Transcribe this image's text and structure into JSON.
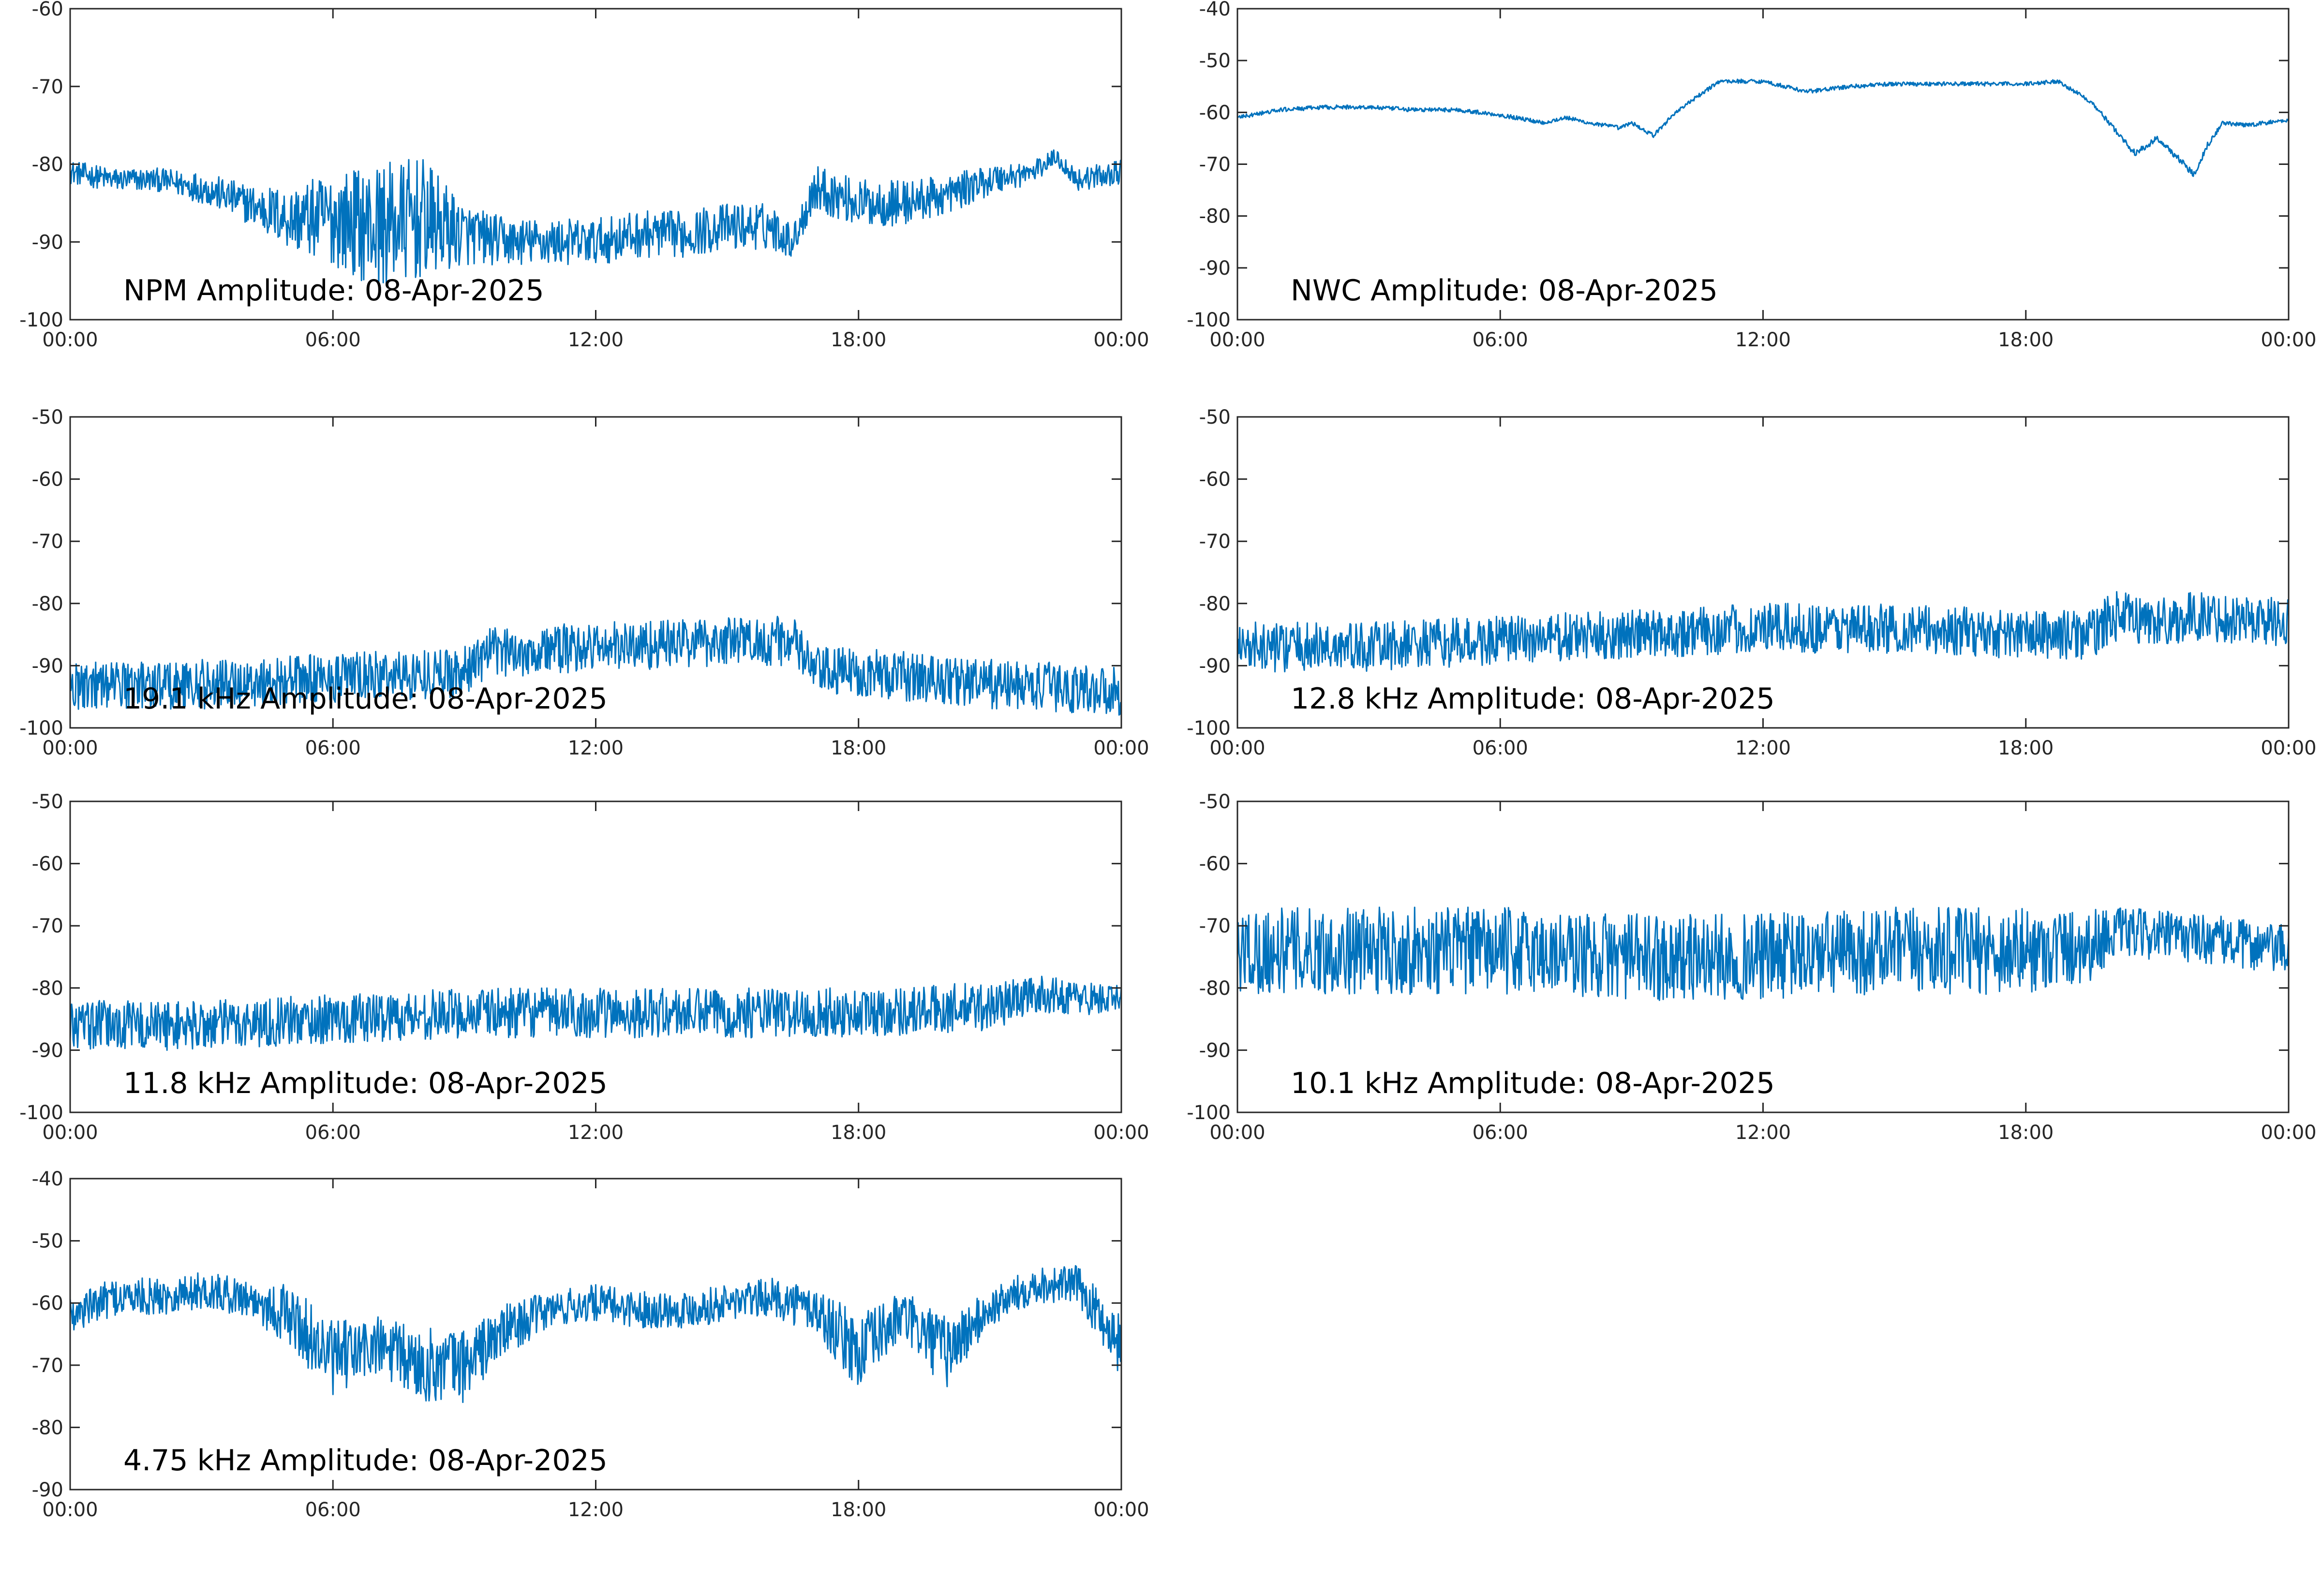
{
  "figure": {
    "line_color": "#0072BD",
    "axis_color": "#262626",
    "background": "#ffffff"
  },
  "chart_data": [
    {
      "id": "npm",
      "type": "line",
      "title": "NPM Amplitude: 08-Apr-2025",
      "xlabel": "",
      "ylabel": "",
      "xlim": [
        "00:00",
        "00:00"
      ],
      "x_ticks": [
        "00:00",
        "06:00",
        "12:00",
        "18:00",
        "00:00"
      ],
      "ylim": [
        -100,
        -60
      ],
      "y_ticks": [
        -100,
        -90,
        -80,
        -70,
        -60
      ],
      "grid": false,
      "series": [
        {
          "x": [
            "00:00",
            "01:00",
            "02:00",
            "03:00",
            "04:00",
            "05:00",
            "06:00",
            "07:00",
            "08:00",
            "09:00",
            "10:00",
            "11:00",
            "12:00",
            "13:00",
            "14:00",
            "15:00",
            "16:00",
            "16:30",
            "17:00",
            "18:00",
            "19:00",
            "20:00",
            "21:00",
            "22:00",
            "22:30",
            "23:00",
            "24:00"
          ],
          "center": [
            -81,
            -82,
            -82,
            -83,
            -85,
            -87,
            -87,
            -88,
            -87,
            -89,
            -90,
            -90,
            -90,
            -89,
            -89,
            -88,
            -88,
            -90,
            -83,
            -85,
            -85,
            -84,
            -82,
            -81,
            -79,
            -82,
            -81
          ],
          "spread": [
            1.5,
            1.5,
            1.5,
            2,
            2.5,
            4,
            6,
            8,
            8,
            4,
            3,
            3,
            3,
            3,
            3,
            3,
            3,
            2,
            3,
            3,
            3,
            2.5,
            2,
            1.5,
            1,
            1.5,
            1.5
          ]
        }
      ]
    },
    {
      "id": "nwc",
      "type": "line",
      "title": "NWC Amplitude: 08-Apr-2025",
      "xlabel": "",
      "ylabel": "",
      "xlim": [
        "00:00",
        "00:00"
      ],
      "x_ticks": [
        "00:00",
        "06:00",
        "12:00",
        "18:00",
        "00:00"
      ],
      "ylim": [
        -100,
        -40
      ],
      "y_ticks": [
        -100,
        -90,
        -80,
        -70,
        -60,
        -50,
        -40
      ],
      "grid": false,
      "series": [
        {
          "x": [
            "00:00",
            "01:00",
            "02:00",
            "03:00",
            "04:00",
            "05:00",
            "06:00",
            "07:00",
            "07:30",
            "08:00",
            "08:45",
            "09:00",
            "09:30",
            "10:00",
            "11:00",
            "12:00",
            "13:00",
            "14:00",
            "15:00",
            "16:00",
            "17:00",
            "18:00",
            "18:45",
            "19:30",
            "20:30",
            "21:00",
            "21:30",
            "21:50",
            "22:10",
            "22:30",
            "23:00",
            "24:00"
          ],
          "center": [
            -61,
            -59.5,
            -59,
            -59,
            -59.5,
            -59.5,
            -60.5,
            -62,
            -61,
            -62,
            -63,
            -62,
            -64.5,
            -60,
            -54,
            -54,
            -56,
            -55,
            -54.5,
            -54.5,
            -54.5,
            -54.5,
            -54,
            -58,
            -68,
            -65,
            -69,
            -72,
            -66,
            -62,
            -62.5,
            -61.5
          ],
          "spread": [
            0.4,
            0.4,
            0.4,
            0.4,
            0.4,
            0.4,
            0.4,
            0.4,
            0.4,
            0.4,
            0.4,
            0.4,
            0.4,
            0.4,
            0.4,
            0.4,
            0.4,
            0.4,
            0.4,
            0.4,
            0.4,
            0.4,
            0.4,
            0.4,
            0.6,
            0.6,
            0.6,
            0.6,
            0.6,
            0.4,
            0.4,
            0.4
          ]
        }
      ]
    },
    {
      "id": "f19_1",
      "type": "line",
      "title": "19.1 kHz Amplitude: 08-Apr-2025",
      "xlabel": "",
      "ylabel": "",
      "xlim": [
        "00:00",
        "00:00"
      ],
      "x_ticks": [
        "00:00",
        "06:00",
        "12:00",
        "18:00",
        "00:00"
      ],
      "ylim": [
        -100,
        -50
      ],
      "y_ticks": [
        -100,
        -90,
        -80,
        -70,
        -60,
        -50
      ],
      "grid": false,
      "series": [
        {
          "x": [
            "00:00",
            "03:00",
            "06:00",
            "09:00",
            "09:30",
            "12:00",
            "15:00",
            "16:30",
            "17:00",
            "18:00",
            "21:00",
            "24:00"
          ],
          "center": [
            -93,
            -93,
            -92,
            -91,
            -88,
            -87,
            -86,
            -86,
            -91,
            -91,
            -93,
            -94
          ],
          "spread": [
            4,
            4,
            4,
            4,
            4,
            4,
            4,
            4,
            4,
            4,
            4,
            4
          ]
        }
      ]
    },
    {
      "id": "f12_8",
      "type": "line",
      "title": "12.8 kHz Amplitude: 08-Apr-2025",
      "xlabel": "",
      "ylabel": "",
      "xlim": [
        "00:00",
        "00:00"
      ],
      "x_ticks": [
        "00:00",
        "06:00",
        "12:00",
        "18:00",
        "00:00"
      ],
      "ylim": [
        -100,
        -50
      ],
      "y_ticks": [
        -100,
        -90,
        -80,
        -70,
        -60,
        -50
      ],
      "grid": false,
      "series": [
        {
          "x": [
            "00:00",
            "03:00",
            "06:00",
            "09:00",
            "12:00",
            "15:00",
            "18:00",
            "19:30",
            "20:00",
            "21:00",
            "22:00",
            "24:00"
          ],
          "center": [
            -87,
            -87,
            -86,
            -85,
            -84,
            -84,
            -85,
            -85,
            -82,
            -83,
            -82,
            -83
          ],
          "spread": [
            4,
            4,
            4,
            4,
            4,
            4,
            4,
            4,
            4,
            4,
            4,
            4
          ]
        }
      ]
    },
    {
      "id": "f11_8",
      "type": "line",
      "title": "11.8 kHz Amplitude: 08-Apr-2025",
      "xlabel": "",
      "ylabel": "",
      "xlim": [
        "00:00",
        "00:00"
      ],
      "x_ticks": [
        "00:00",
        "06:00",
        "12:00",
        "18:00",
        "00:00"
      ],
      "ylim": [
        -100,
        -50
      ],
      "y_ticks": [
        -100,
        -90,
        -80,
        -70,
        -60,
        -50
      ],
      "grid": false,
      "series": [
        {
          "x": [
            "00:00",
            "03:00",
            "06:00",
            "09:00",
            "12:00",
            "15:00",
            "18:00",
            "21:00",
            "22:00",
            "24:00"
          ],
          "center": [
            -86,
            -86,
            -85,
            -84,
            -84,
            -84,
            -84,
            -83,
            -81,
            -82
          ],
          "spread": [
            4,
            4,
            4,
            4,
            4,
            4,
            4,
            4,
            3,
            2.5
          ]
        }
      ]
    },
    {
      "id": "f10_1",
      "type": "line",
      "title": "10.1 kHz Amplitude: 08-Apr-2025",
      "xlabel": "",
      "ylabel": "",
      "xlim": [
        "00:00",
        "00:00"
      ],
      "x_ticks": [
        "00:00",
        "06:00",
        "12:00",
        "18:00",
        "00:00"
      ],
      "ylim": [
        -100,
        -50
      ],
      "y_ticks": [
        -100,
        -90,
        -80,
        -70,
        -60,
        -50
      ],
      "grid": false,
      "series": [
        {
          "x": [
            "00:00",
            "03:00",
            "06:00",
            "09:00",
            "12:00",
            "15:00",
            "18:00",
            "19:30",
            "20:00",
            "22:00",
            "24:00"
          ],
          "center": [
            -74,
            -74,
            -74,
            -75,
            -75,
            -74,
            -74,
            -73,
            -71,
            -72,
            -74
          ],
          "spread": [
            7,
            7,
            7,
            7,
            7,
            7,
            7,
            6,
            4,
            4,
            4
          ]
        }
      ]
    },
    {
      "id": "f4_75",
      "type": "line",
      "title": "4.75 kHz Amplitude: 08-Apr-2025",
      "xlabel": "",
      "ylabel": "",
      "xlim": [
        "00:00",
        "00:00"
      ],
      "x_ticks": [
        "00:00",
        "06:00",
        "12:00",
        "18:00",
        "00:00"
      ],
      "ylim": [
        -90,
        -40
      ],
      "y_ticks": [
        -90,
        -80,
        -70,
        -60,
        -50,
        -40
      ],
      "grid": false,
      "series": [
        {
          "x": [
            "00:00",
            "01:00",
            "02:00",
            "03:00",
            "04:00",
            "05:00",
            "06:00",
            "07:00",
            "08:00",
            "09:00",
            "10:00",
            "11:00",
            "12:00",
            "13:00",
            "14:00",
            "15:00",
            "16:00",
            "17:00",
            "18:00",
            "19:00",
            "20:00",
            "21:00",
            "22:00",
            "23:00",
            "24:00"
          ],
          "center": [
            -62,
            -59,
            -59,
            -58,
            -59,
            -62,
            -69,
            -67,
            -70,
            -70,
            -64,
            -61,
            -60,
            -61,
            -61,
            -60,
            -59,
            -61,
            -68,
            -62,
            -68,
            -61,
            -57,
            -57,
            -67
          ],
          "spread": [
            3,
            3,
            3,
            3,
            3,
            5,
            6,
            5,
            6,
            6,
            4,
            3,
            3,
            3,
            3,
            3,
            3,
            4,
            6,
            4,
            6,
            3,
            3,
            3,
            5
          ]
        }
      ]
    }
  ]
}
